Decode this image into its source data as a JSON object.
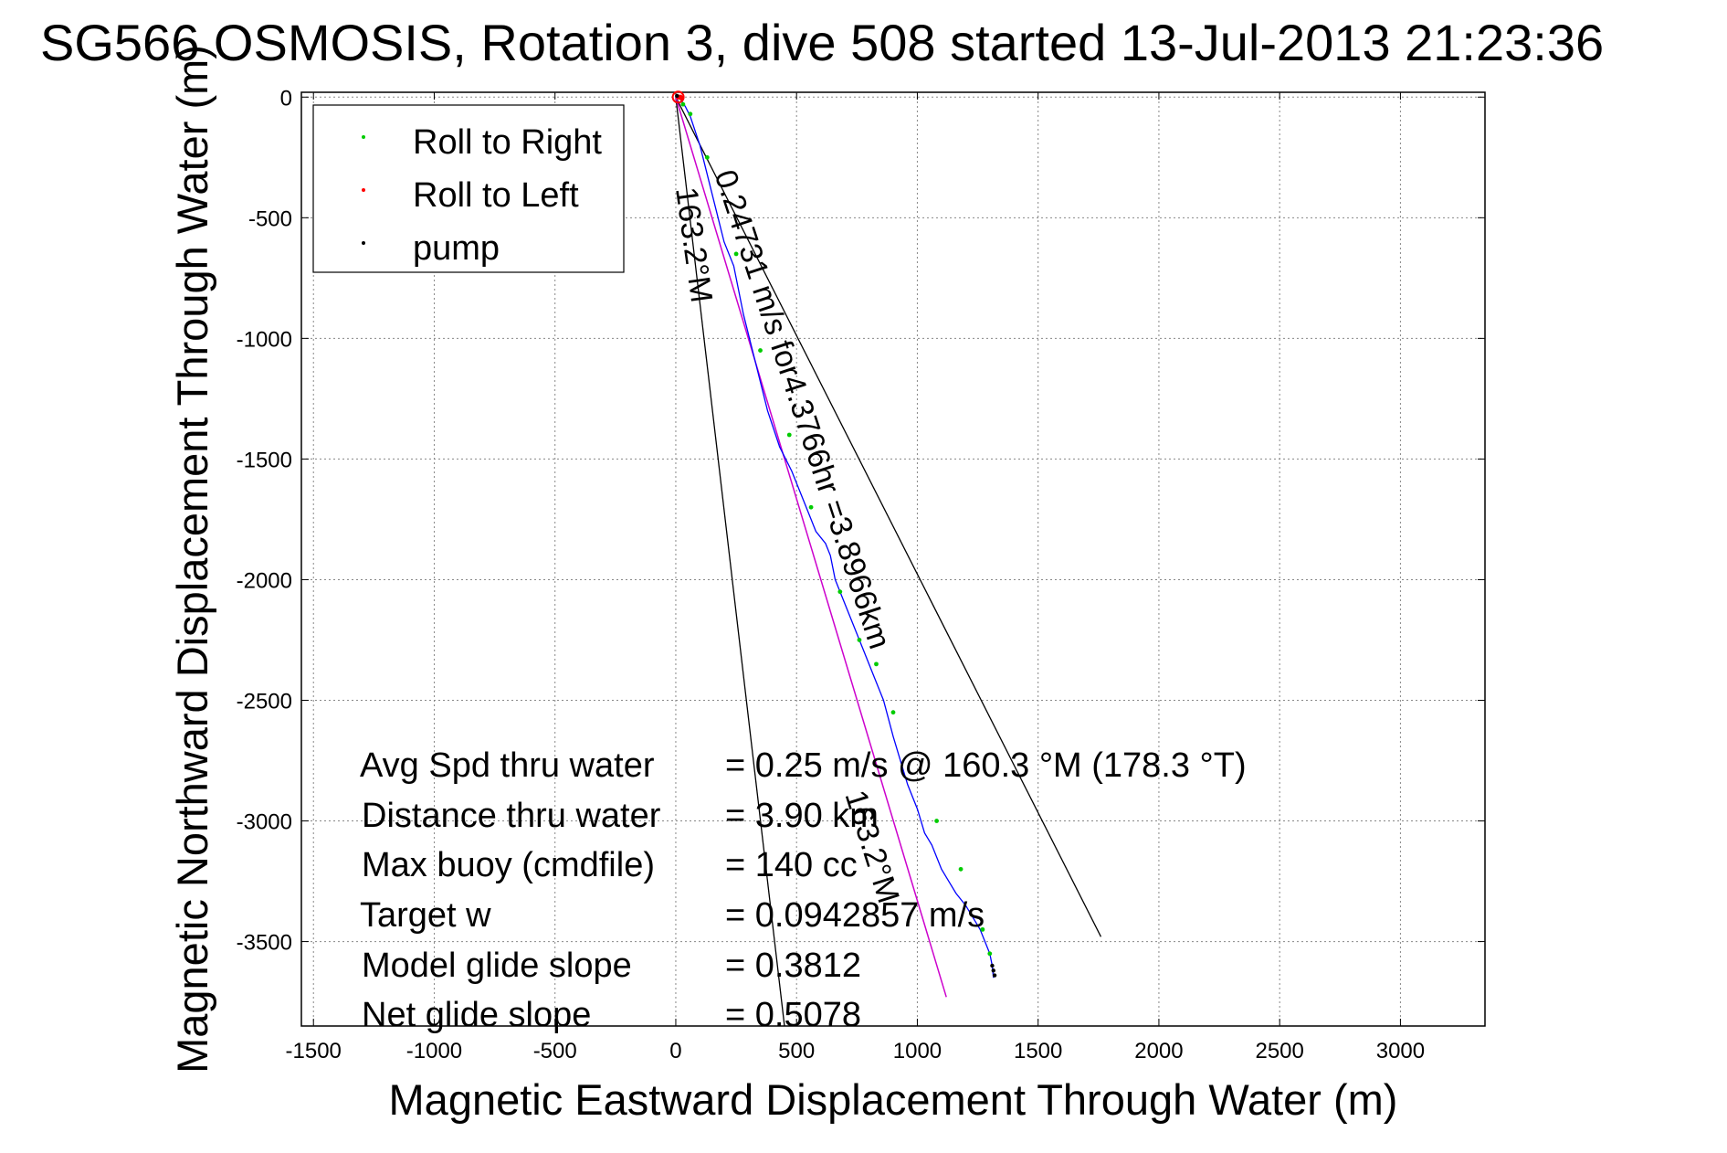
{
  "chart_data": {
    "type": "line",
    "title": "SG566 OSMOSIS, Rotation 3, dive 508 started 13-Jul-2013 21:23:36",
    "xlabel": "Magnetic Eastward Displacement Through Water (m)",
    "ylabel": "Magnetic Northward Displacement Through Water (m)",
    "xlim": [
      -1550,
      3350
    ],
    "ylim": [
      -3850,
      20
    ],
    "xticks": [
      -1500,
      -1000,
      -500,
      0,
      500,
      1000,
      1500,
      2000,
      2500,
      3000
    ],
    "yticks": [
      0,
      -500,
      -1000,
      -1500,
      -2000,
      -2500,
      -3000,
      -3500
    ],
    "grid": true,
    "legend_position": "top-left",
    "legend": [
      {
        "label": "Roll to Right",
        "color": "#00cc00"
      },
      {
        "label": "Roll to Left",
        "color": "#ff0000"
      },
      {
        "label": "pump",
        "color": "#000000"
      }
    ],
    "track": {
      "color": "#0000ff",
      "x": [
        0,
        20,
        40,
        60,
        100,
        150,
        200,
        240,
        280,
        330,
        380,
        430,
        480,
        520,
        560,
        580,
        620,
        640,
        660,
        700,
        740,
        780,
        820,
        860,
        900,
        930,
        960,
        1000,
        1030,
        1060,
        1100,
        1130,
        1160,
        1200,
        1230,
        1260,
        1280,
        1300,
        1310,
        1315
      ],
      "y": [
        0,
        -10,
        -40,
        -80,
        -200,
        -400,
        -600,
        -700,
        -900,
        -1100,
        -1300,
        -1450,
        -1550,
        -1650,
        -1750,
        -1800,
        -1850,
        -1900,
        -2000,
        -2100,
        -2200,
        -2300,
        -2400,
        -2500,
        -2650,
        -2750,
        -2850,
        -2950,
        -3050,
        -3100,
        -3200,
        -3250,
        -3300,
        -3350,
        -3400,
        -3450,
        -3500,
        -3550,
        -3600,
        -3650
      ]
    },
    "roll_right": {
      "color": "#00cc00",
      "x": [
        30,
        60,
        130,
        250,
        350,
        470,
        560,
        680,
        760,
        830,
        900,
        1080,
        1180,
        1270,
        1300
      ],
      "y": [
        -30,
        -70,
        -250,
        -650,
        -1050,
        -1400,
        -1700,
        -2050,
        -2250,
        -2350,
        -2550,
        -3000,
        -3200,
        -3450,
        -3550
      ]
    },
    "roll_left": {
      "color": "#ff0000",
      "x": [
        10,
        15,
        20,
        25
      ],
      "y": [
        0,
        0,
        0,
        -5
      ]
    },
    "pump": {
      "color": "#000000",
      "x": [
        5,
        1310,
        1315,
        1320
      ],
      "y": [
        5,
        -3600,
        -3620,
        -3640
      ]
    },
    "heading_line": {
      "color": "#cc00cc",
      "x": [
        0,
        1120
      ],
      "y": [
        0,
        -3730
      ]
    },
    "cone_lines": [
      {
        "color": "#000000",
        "x": [
          0,
          450
        ],
        "y": [
          0,
          -3850
        ]
      },
      {
        "color": "#000000",
        "x": [
          0,
          1760
        ],
        "y": [
          0,
          -3480
        ]
      }
    ],
    "annotations": {
      "leg": "0.24731 m/s for4.3766hr =3.8966km",
      "heading_a": "163.2°M",
      "heading_b": "163.2°M"
    },
    "stats": [
      {
        "label": "Avg Spd thru water",
        "value": "=  0.25 m/s @ 160.3 °M (178.3 °T)"
      },
      {
        "label": "Distance thru water",
        "value": "=  3.90 km"
      },
      {
        "label": "Max buoy (cmdfile)",
        "value": "= 140 cc"
      },
      {
        "label": "Target w",
        "value": "= 0.0942857 m/s"
      },
      {
        "label": "Model glide slope",
        "value": "= 0.3812"
      },
      {
        "label": "Net glide slope",
        "value": "= 0.5078"
      }
    ]
  }
}
